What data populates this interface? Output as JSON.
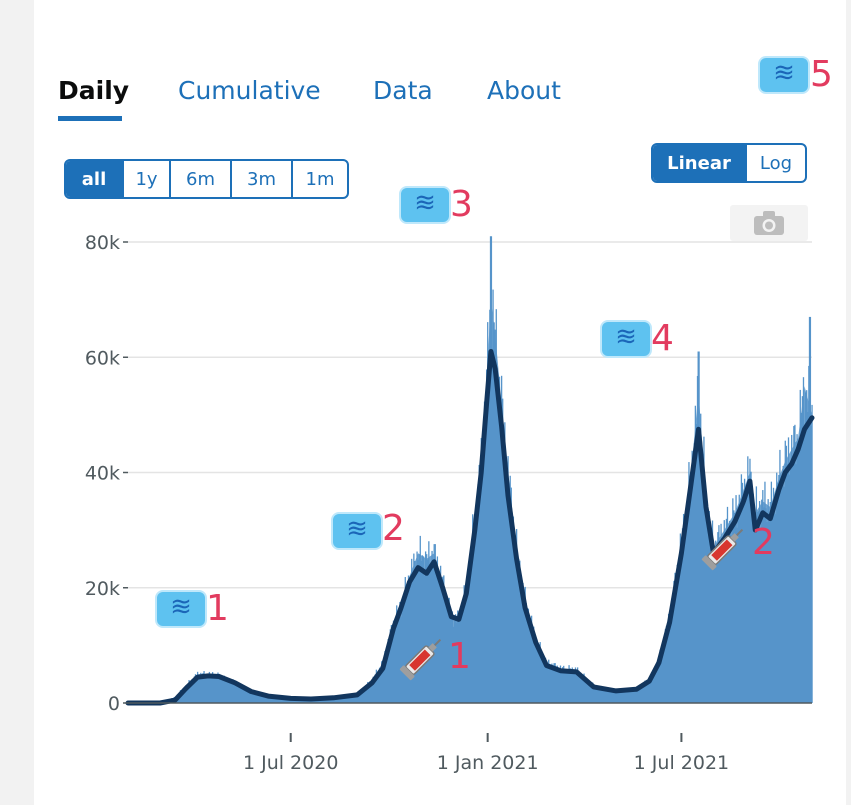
{
  "tabs": [
    {
      "label": "Daily",
      "active": true
    },
    {
      "label": "Cumulative",
      "active": false
    },
    {
      "label": "Data",
      "active": false
    },
    {
      "label": "About",
      "active": false
    }
  ],
  "range_buttons": [
    {
      "label": "all",
      "active": true
    },
    {
      "label": "1y",
      "active": false
    },
    {
      "label": "6m",
      "active": false
    },
    {
      "label": "3m",
      "active": false
    },
    {
      "label": "1m",
      "active": false
    }
  ],
  "scale_buttons": [
    {
      "label": "Linear",
      "active": true
    },
    {
      "label": "Log",
      "active": false
    }
  ],
  "camera_icon": "camera-icon",
  "colors": {
    "accent": "#1d70b8",
    "bars": "#5694ca",
    "line": "#12365e",
    "annotation_number": "#e23b5f",
    "wave_emoji": "#5ec2f0"
  },
  "annotations": {
    "waves": [
      {
        "number": "1",
        "icon": "water-wave-emoji",
        "date": "2020-04-10"
      },
      {
        "number": "2",
        "icon": "water-wave-emoji",
        "date": "2020-10-25"
      },
      {
        "number": "3",
        "icon": "water-wave-emoji",
        "date": "2021-01-01"
      },
      {
        "number": "4",
        "icon": "water-wave-emoji",
        "date": "2021-07-15"
      },
      {
        "number": "5",
        "icon": "water-wave-emoji",
        "date": "2021-10-31"
      }
    ],
    "vaccines": [
      {
        "number": "1",
        "icon": "syringe-emoji",
        "date": "2020-12-08"
      },
      {
        "number": "2",
        "icon": "syringe-emoji",
        "date": "2021-09-16"
      }
    ]
  },
  "chart_data": {
    "type": "bar",
    "overlay": "line",
    "scale": "linear",
    "grid": true,
    "x_ticks": [
      {
        "date": "2020-07-01",
        "label": "1 Jul 2020"
      },
      {
        "date": "2021-01-01",
        "label": "1 Jan 2021"
      },
      {
        "date": "2021-07-01",
        "label": "1 Jul 2021"
      }
    ],
    "y_ticks": [
      {
        "value": 0,
        "label": "0"
      },
      {
        "value": 20000,
        "label": "20k"
      },
      {
        "value": 40000,
        "label": "40k"
      },
      {
        "value": 60000,
        "label": "60k"
      },
      {
        "value": 80000,
        "label": "80k"
      }
    ],
    "xlim": [
      "2020-01-31",
      "2021-10-31"
    ],
    "ylim": [
      0,
      80000
    ],
    "series": [
      {
        "kind": "daily-bars",
        "points": [
          [
            "2020-01-31",
            0
          ],
          [
            "2020-03-01",
            100
          ],
          [
            "2020-03-15",
            1000
          ],
          [
            "2020-03-25",
            3000
          ],
          [
            "2020-04-05",
            5000
          ],
          [
            "2020-04-15",
            5000
          ],
          [
            "2020-04-25",
            4800
          ],
          [
            "2020-05-10",
            3500
          ],
          [
            "2020-05-25",
            2000
          ],
          [
            "2020-06-10",
            1200
          ],
          [
            "2020-07-01",
            800
          ],
          [
            "2020-07-20",
            700
          ],
          [
            "2020-08-10",
            900
          ],
          [
            "2020-09-01",
            1500
          ],
          [
            "2020-09-15",
            4000
          ],
          [
            "2020-09-25",
            7000
          ],
          [
            "2020-10-05",
            14000
          ],
          [
            "2020-10-12",
            17000
          ],
          [
            "2020-10-20",
            22000
          ],
          [
            "2020-10-28",
            26000
          ],
          [
            "2020-11-05",
            25000
          ],
          [
            "2020-11-12",
            26000
          ],
          [
            "2020-11-20",
            21000
          ],
          [
            "2020-11-28",
            15000
          ],
          [
            "2020-12-05",
            14500
          ],
          [
            "2020-12-12",
            20000
          ],
          [
            "2020-12-20",
            32000
          ],
          [
            "2020-12-26",
            42000
          ],
          [
            "2020-12-31",
            56000
          ],
          [
            "2021-01-04",
            70000
          ],
          [
            "2021-01-08",
            64000
          ],
          [
            "2021-01-14",
            52000
          ],
          [
            "2021-01-20",
            40000
          ],
          [
            "2021-01-28",
            27000
          ],
          [
            "2021-02-05",
            18000
          ],
          [
            "2021-02-15",
            11000
          ],
          [
            "2021-02-25",
            7000
          ],
          [
            "2021-03-10",
            6000
          ],
          [
            "2021-03-25",
            5800
          ],
          [
            "2021-04-10",
            3000
          ],
          [
            "2021-05-01",
            2200
          ],
          [
            "2021-05-20",
            2500
          ],
          [
            "2021-06-01",
            4000
          ],
          [
            "2021-06-10",
            7500
          ],
          [
            "2021-06-20",
            15000
          ],
          [
            "2021-07-01",
            28000
          ],
          [
            "2021-07-10",
            40000
          ],
          [
            "2021-07-17",
            54000
          ],
          [
            "2021-07-24",
            36000
          ],
          [
            "2021-07-31",
            27000
          ],
          [
            "2021-08-10",
            30000
          ],
          [
            "2021-08-20",
            33000
          ],
          [
            "2021-08-28",
            37000
          ],
          [
            "2021-09-03",
            40000
          ],
          [
            "2021-09-08",
            33000
          ],
          [
            "2021-09-15",
            35000
          ],
          [
            "2021-09-22",
            34000
          ],
          [
            "2021-09-30",
            39000
          ],
          [
            "2021-10-06",
            42000
          ],
          [
            "2021-10-12",
            44000
          ],
          [
            "2021-10-18",
            46000
          ],
          [
            "2021-10-24",
            55000
          ],
          [
            "2021-10-31",
            50000
          ]
        ]
      },
      {
        "kind": "7-day-average-line",
        "points": [
          [
            "2020-01-31",
            0
          ],
          [
            "2020-03-01",
            0
          ],
          [
            "2020-03-15",
            500
          ],
          [
            "2020-03-25",
            2500
          ],
          [
            "2020-04-05",
            4500
          ],
          [
            "2020-04-15",
            4700
          ],
          [
            "2020-04-25",
            4600
          ],
          [
            "2020-05-10",
            3500
          ],
          [
            "2020-05-25",
            2000
          ],
          [
            "2020-06-10",
            1200
          ],
          [
            "2020-07-01",
            800
          ],
          [
            "2020-07-20",
            700
          ],
          [
            "2020-08-10",
            900
          ],
          [
            "2020-09-01",
            1400
          ],
          [
            "2020-09-15",
            3500
          ],
          [
            "2020-09-25",
            6000
          ],
          [
            "2020-10-05",
            13000
          ],
          [
            "2020-10-12",
            16500
          ],
          [
            "2020-10-20",
            21000
          ],
          [
            "2020-10-28",
            23500
          ],
          [
            "2020-11-05",
            22500
          ],
          [
            "2020-11-12",
            24500
          ],
          [
            "2020-11-20",
            20000
          ],
          [
            "2020-11-28",
            15000
          ],
          [
            "2020-12-05",
            14500
          ],
          [
            "2020-12-12",
            19000
          ],
          [
            "2020-12-20",
            30000
          ],
          [
            "2020-12-26",
            40000
          ],
          [
            "2020-12-31",
            52000
          ],
          [
            "2021-01-04",
            61000
          ],
          [
            "2021-01-08",
            58000
          ],
          [
            "2021-01-14",
            48000
          ],
          [
            "2021-01-20",
            36000
          ],
          [
            "2021-01-28",
            25000
          ],
          [
            "2021-02-05",
            16500
          ],
          [
            "2021-02-15",
            10500
          ],
          [
            "2021-02-25",
            6500
          ],
          [
            "2021-03-10",
            5600
          ],
          [
            "2021-03-25",
            5400
          ],
          [
            "2021-04-10",
            2800
          ],
          [
            "2021-05-01",
            2100
          ],
          [
            "2021-05-20",
            2400
          ],
          [
            "2021-06-01",
            3800
          ],
          [
            "2021-06-10",
            7000
          ],
          [
            "2021-06-20",
            14000
          ],
          [
            "2021-07-01",
            26000
          ],
          [
            "2021-07-10",
            38000
          ],
          [
            "2021-07-17",
            47500
          ],
          [
            "2021-07-24",
            34000
          ],
          [
            "2021-07-31",
            26000
          ],
          [
            "2021-08-10",
            28500
          ],
          [
            "2021-08-20",
            31500
          ],
          [
            "2021-08-28",
            35000
          ],
          [
            "2021-09-03",
            38500
          ],
          [
            "2021-09-08",
            30000
          ],
          [
            "2021-09-15",
            33000
          ],
          [
            "2021-09-22",
            32000
          ],
          [
            "2021-09-30",
            37000
          ],
          [
            "2021-10-06",
            40000
          ],
          [
            "2021-10-12",
            41500
          ],
          [
            "2021-10-18",
            44000
          ],
          [
            "2021-10-24",
            47500
          ],
          [
            "2021-10-31",
            49500
          ]
        ]
      }
    ]
  }
}
